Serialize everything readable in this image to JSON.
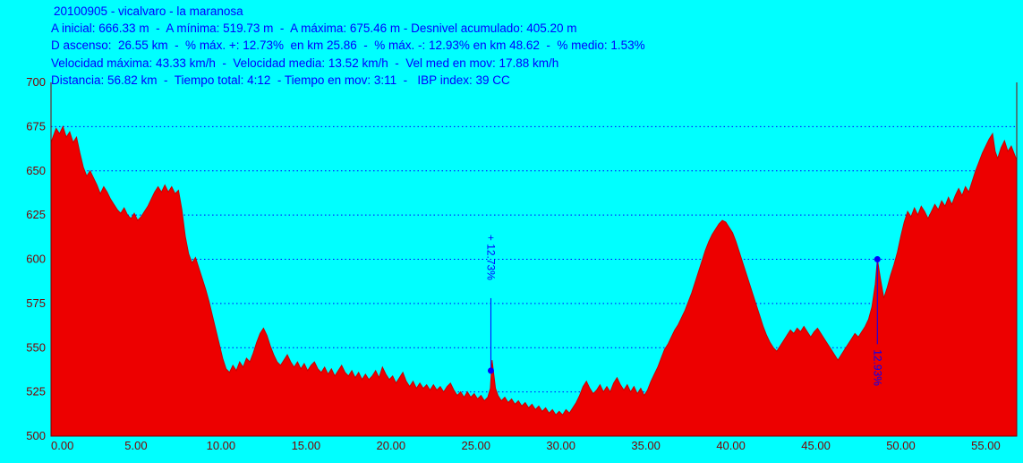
{
  "header": {
    "title": "20100905 - vicalvaro - la maranosa",
    "line2": "A inicial: 666.33 m  -  A mínima: 519.73 m  -  A máxima: 675.46 m - Desnivel acumulado: 405.20 m",
    "line3": "D ascenso:  26.55 km  -  % máx. +: 12.73%  en km 25.86  -  % máx. -: 12.93% en km 48.62  -  % medio: 1.53%",
    "line4": "Velocidad máxima: 43.33 km/h  -  Velocidad media: 13.52 km/h  -  Vel med en mov: 17.88 km/h",
    "line5": "Distancia: 56.82 km  -  Tiempo total: 4:12  - Tiempo en mov: 3:11  -   IBP index: 39 CC"
  },
  "chart_data": {
    "type": "area",
    "title": "20100905 - vicalvaro - la maranosa",
    "xlabel": "",
    "ylabel": "",
    "xlim": [
      0,
      56.82
    ],
    "ylim": [
      500,
      700
    ],
    "grid": "horizontal-dotted",
    "legend": "none",
    "x_ticks": [
      0,
      5,
      10,
      15,
      20,
      25,
      30,
      35,
      40,
      45,
      50,
      55
    ],
    "x_tick_labels": [
      "0.00",
      "5.00",
      "10.00",
      "15.00",
      "20.00",
      "25.00",
      "30.00",
      "35.00",
      "40.00",
      "45.00",
      "50.00",
      "55.00"
    ],
    "y_ticks": [
      500,
      525,
      550,
      575,
      600,
      625,
      650,
      675,
      700
    ],
    "y_tick_labels": [
      "500",
      "525",
      "550",
      "575",
      "600",
      "625",
      "650",
      "675",
      "700"
    ],
    "annotations": [
      {
        "label": "+ 12.73%",
        "km": 25.88,
        "dot_elev": 537,
        "line_from_elev": 578,
        "line_to_elev": 538,
        "text_elev": 614
      },
      {
        "label": "12.93%",
        "km": 48.62,
        "dot_elev": 600,
        "line_from_elev": 599,
        "line_to_elev": 552,
        "text_elev": 549
      }
    ],
    "colors": {
      "background": "#00FFFF",
      "area": "#ED0000",
      "area_stroke": "#C80000",
      "grid": "#0000FF",
      "axis": "#800000",
      "tick_text": "#800000",
      "annotation": "#0000FF",
      "header_text": "#0000FF"
    },
    "series": [
      {
        "name": "elevation_m_vs_km",
        "points": [
          [
            0,
            666
          ],
          [
            0.15,
            670
          ],
          [
            0.3,
            674
          ],
          [
            0.5,
            671
          ],
          [
            0.7,
            675
          ],
          [
            0.9,
            669
          ],
          [
            1.1,
            672
          ],
          [
            1.3,
            666
          ],
          [
            1.5,
            669
          ],
          [
            1.7,
            660
          ],
          [
            1.9,
            652
          ],
          [
            2.1,
            647
          ],
          [
            2.3,
            650
          ],
          [
            2.5,
            646
          ],
          [
            2.7,
            642
          ],
          [
            2.9,
            637
          ],
          [
            3.1,
            641
          ],
          [
            3.3,
            638
          ],
          [
            3.5,
            634
          ],
          [
            3.7,
            631
          ],
          [
            3.9,
            628
          ],
          [
            4.1,
            626
          ],
          [
            4.3,
            629
          ],
          [
            4.5,
            625
          ],
          [
            4.7,
            623
          ],
          [
            4.9,
            626
          ],
          [
            5.1,
            622
          ],
          [
            5.3,
            624
          ],
          [
            5.5,
            627
          ],
          [
            5.7,
            630
          ],
          [
            5.9,
            634
          ],
          [
            6.1,
            638
          ],
          [
            6.3,
            641
          ],
          [
            6.5,
            638
          ],
          [
            6.7,
            642
          ],
          [
            6.9,
            638
          ],
          [
            7.1,
            641
          ],
          [
            7.3,
            637
          ],
          [
            7.5,
            639
          ],
          [
            7.7,
            628
          ],
          [
            7.9,
            613
          ],
          [
            8.1,
            603
          ],
          [
            8.3,
            598
          ],
          [
            8.5,
            601
          ],
          [
            8.7,
            595
          ],
          [
            8.9,
            589
          ],
          [
            9.1,
            583
          ],
          [
            9.3,
            576
          ],
          [
            9.5,
            568
          ],
          [
            9.7,
            560
          ],
          [
            9.9,
            552
          ],
          [
            10.1,
            544
          ],
          [
            10.3,
            538
          ],
          [
            10.5,
            536
          ],
          [
            10.7,
            540
          ],
          [
            10.9,
            537
          ],
          [
            11.1,
            542
          ],
          [
            11.3,
            539
          ],
          [
            11.5,
            544
          ],
          [
            11.7,
            542
          ],
          [
            11.9,
            547
          ],
          [
            12.1,
            553
          ],
          [
            12.3,
            558
          ],
          [
            12.5,
            561
          ],
          [
            12.7,
            557
          ],
          [
            12.9,
            551
          ],
          [
            13.1,
            546
          ],
          [
            13.3,
            542
          ],
          [
            13.5,
            540
          ],
          [
            13.7,
            543
          ],
          [
            13.9,
            546
          ],
          [
            14.1,
            542
          ],
          [
            14.3,
            539
          ],
          [
            14.5,
            542
          ],
          [
            14.7,
            538
          ],
          [
            14.9,
            541
          ],
          [
            15.1,
            537
          ],
          [
            15.3,
            540
          ],
          [
            15.5,
            542
          ],
          [
            15.7,
            538
          ],
          [
            15.9,
            536
          ],
          [
            16.1,
            539
          ],
          [
            16.3,
            535
          ],
          [
            16.5,
            538
          ],
          [
            16.7,
            534
          ],
          [
            16.9,
            537
          ],
          [
            17.1,
            540
          ],
          [
            17.3,
            536
          ],
          [
            17.5,
            534
          ],
          [
            17.7,
            537
          ],
          [
            17.9,
            533
          ],
          [
            18.1,
            536
          ],
          [
            18.3,
            532
          ],
          [
            18.5,
            535
          ],
          [
            18.7,
            532
          ],
          [
            18.9,
            534
          ],
          [
            19.1,
            537
          ],
          [
            19.3,
            533
          ],
          [
            19.5,
            539
          ],
          [
            19.7,
            535
          ],
          [
            19.9,
            532
          ],
          [
            20.1,
            534
          ],
          [
            20.3,
            530
          ],
          [
            20.5,
            533
          ],
          [
            20.7,
            536
          ],
          [
            20.9,
            531
          ],
          [
            21.1,
            528
          ],
          [
            21.3,
            531
          ],
          [
            21.5,
            527
          ],
          [
            21.7,
            530
          ],
          [
            21.9,
            527
          ],
          [
            22.1,
            529
          ],
          [
            22.3,
            526
          ],
          [
            22.5,
            529
          ],
          [
            22.7,
            526
          ],
          [
            22.9,
            528
          ],
          [
            23.1,
            525
          ],
          [
            23.3,
            528
          ],
          [
            23.5,
            530
          ],
          [
            23.7,
            526
          ],
          [
            23.9,
            523
          ],
          [
            24.1,
            525
          ],
          [
            24.3,
            522
          ],
          [
            24.5,
            525
          ],
          [
            24.7,
            522
          ],
          [
            24.9,
            524
          ],
          [
            25.1,
            521
          ],
          [
            25.3,
            523
          ],
          [
            25.5,
            520
          ],
          [
            25.7,
            522
          ],
          [
            25.85,
            527
          ],
          [
            25.95,
            543
          ],
          [
            26.05,
            535
          ],
          [
            26.15,
            527
          ],
          [
            26.3,
            523
          ],
          [
            26.5,
            520
          ],
          [
            26.7,
            522
          ],
          [
            26.9,
            519
          ],
          [
            27.1,
            521
          ],
          [
            27.3,
            518
          ],
          [
            27.5,
            520
          ],
          [
            27.7,
            517
          ],
          [
            27.9,
            519
          ],
          [
            28.1,
            516
          ],
          [
            28.3,
            518
          ],
          [
            28.5,
            515
          ],
          [
            28.7,
            517
          ],
          [
            28.9,
            514
          ],
          [
            29.1,
            516
          ],
          [
            29.3,
            513
          ],
          [
            29.5,
            515
          ],
          [
            29.7,
            512
          ],
          [
            29.9,
            514
          ],
          [
            30.1,
            512
          ],
          [
            30.3,
            515
          ],
          [
            30.5,
            513
          ],
          [
            30.7,
            516
          ],
          [
            30.9,
            519
          ],
          [
            31.1,
            523
          ],
          [
            31.3,
            528
          ],
          [
            31.5,
            531
          ],
          [
            31.7,
            527
          ],
          [
            31.9,
            524
          ],
          [
            32.1,
            526
          ],
          [
            32.3,
            529
          ],
          [
            32.5,
            525
          ],
          [
            32.7,
            528
          ],
          [
            32.9,
            525
          ],
          [
            33.1,
            530
          ],
          [
            33.3,
            533
          ],
          [
            33.5,
            529
          ],
          [
            33.7,
            526
          ],
          [
            33.9,
            529
          ],
          [
            34.1,
            525
          ],
          [
            34.3,
            528
          ],
          [
            34.5,
            524
          ],
          [
            34.7,
            527
          ],
          [
            34.9,
            523
          ],
          [
            35.1,
            526
          ],
          [
            35.3,
            531
          ],
          [
            35.5,
            535
          ],
          [
            35.7,
            539
          ],
          [
            35.9,
            544
          ],
          [
            36.1,
            549
          ],
          [
            36.3,
            552
          ],
          [
            36.5,
            556
          ],
          [
            36.7,
            560
          ],
          [
            36.9,
            563
          ],
          [
            37.1,
            567
          ],
          [
            37.3,
            571
          ],
          [
            37.5,
            576
          ],
          [
            37.7,
            581
          ],
          [
            37.9,
            587
          ],
          [
            38.1,
            593
          ],
          [
            38.3,
            599
          ],
          [
            38.5,
            605
          ],
          [
            38.7,
            610
          ],
          [
            38.9,
            614
          ],
          [
            39.1,
            617
          ],
          [
            39.3,
            620
          ],
          [
            39.5,
            622
          ],
          [
            39.7,
            621
          ],
          [
            39.9,
            618
          ],
          [
            40.1,
            615
          ],
          [
            40.3,
            610
          ],
          [
            40.5,
            604
          ],
          [
            40.7,
            598
          ],
          [
            40.9,
            592
          ],
          [
            41.1,
            586
          ],
          [
            41.3,
            580
          ],
          [
            41.5,
            574
          ],
          [
            41.7,
            568
          ],
          [
            41.9,
            562
          ],
          [
            42.1,
            557
          ],
          [
            42.3,
            553
          ],
          [
            42.5,
            550
          ],
          [
            42.7,
            548
          ],
          [
            42.9,
            551
          ],
          [
            43.1,
            554
          ],
          [
            43.3,
            557
          ],
          [
            43.5,
            560
          ],
          [
            43.7,
            558
          ],
          [
            43.9,
            561
          ],
          [
            44.1,
            559
          ],
          [
            44.3,
            562
          ],
          [
            44.5,
            559
          ],
          [
            44.7,
            556
          ],
          [
            44.9,
            559
          ],
          [
            45.1,
            561
          ],
          [
            45.3,
            558
          ],
          [
            45.5,
            555
          ],
          [
            45.7,
            552
          ],
          [
            45.9,
            549
          ],
          [
            46.1,
            546
          ],
          [
            46.3,
            543
          ],
          [
            46.5,
            546
          ],
          [
            46.7,
            549
          ],
          [
            46.9,
            552
          ],
          [
            47.1,
            555
          ],
          [
            47.3,
            558
          ],
          [
            47.5,
            556
          ],
          [
            47.7,
            559
          ],
          [
            47.9,
            562
          ],
          [
            48.1,
            566
          ],
          [
            48.3,
            573
          ],
          [
            48.5,
            586
          ],
          [
            48.62,
            600
          ],
          [
            48.8,
            589
          ],
          [
            49,
            578
          ],
          [
            49.2,
            584
          ],
          [
            49.4,
            591
          ],
          [
            49.6,
            597
          ],
          [
            49.8,
            604
          ],
          [
            50,
            613
          ],
          [
            50.2,
            621
          ],
          [
            50.4,
            627
          ],
          [
            50.6,
            624
          ],
          [
            50.8,
            629
          ],
          [
            51,
            625
          ],
          [
            51.2,
            630
          ],
          [
            51.4,
            627
          ],
          [
            51.6,
            623
          ],
          [
            51.8,
            627
          ],
          [
            52,
            631
          ],
          [
            52.2,
            628
          ],
          [
            52.4,
            633
          ],
          [
            52.6,
            630
          ],
          [
            52.8,
            635
          ],
          [
            53,
            631
          ],
          [
            53.2,
            636
          ],
          [
            53.4,
            640
          ],
          [
            53.6,
            636
          ],
          [
            53.8,
            641
          ],
          [
            54,
            638
          ],
          [
            54.2,
            644
          ],
          [
            54.4,
            650
          ],
          [
            54.6,
            655
          ],
          [
            54.8,
            660
          ],
          [
            55,
            664
          ],
          [
            55.2,
            668
          ],
          [
            55.4,
            671
          ],
          [
            55.55,
            661
          ],
          [
            55.7,
            657
          ],
          [
            55.9,
            663
          ],
          [
            56.1,
            667
          ],
          [
            56.3,
            661
          ],
          [
            56.5,
            664
          ],
          [
            56.7,
            659
          ],
          [
            56.82,
            656
          ]
        ]
      }
    ]
  }
}
